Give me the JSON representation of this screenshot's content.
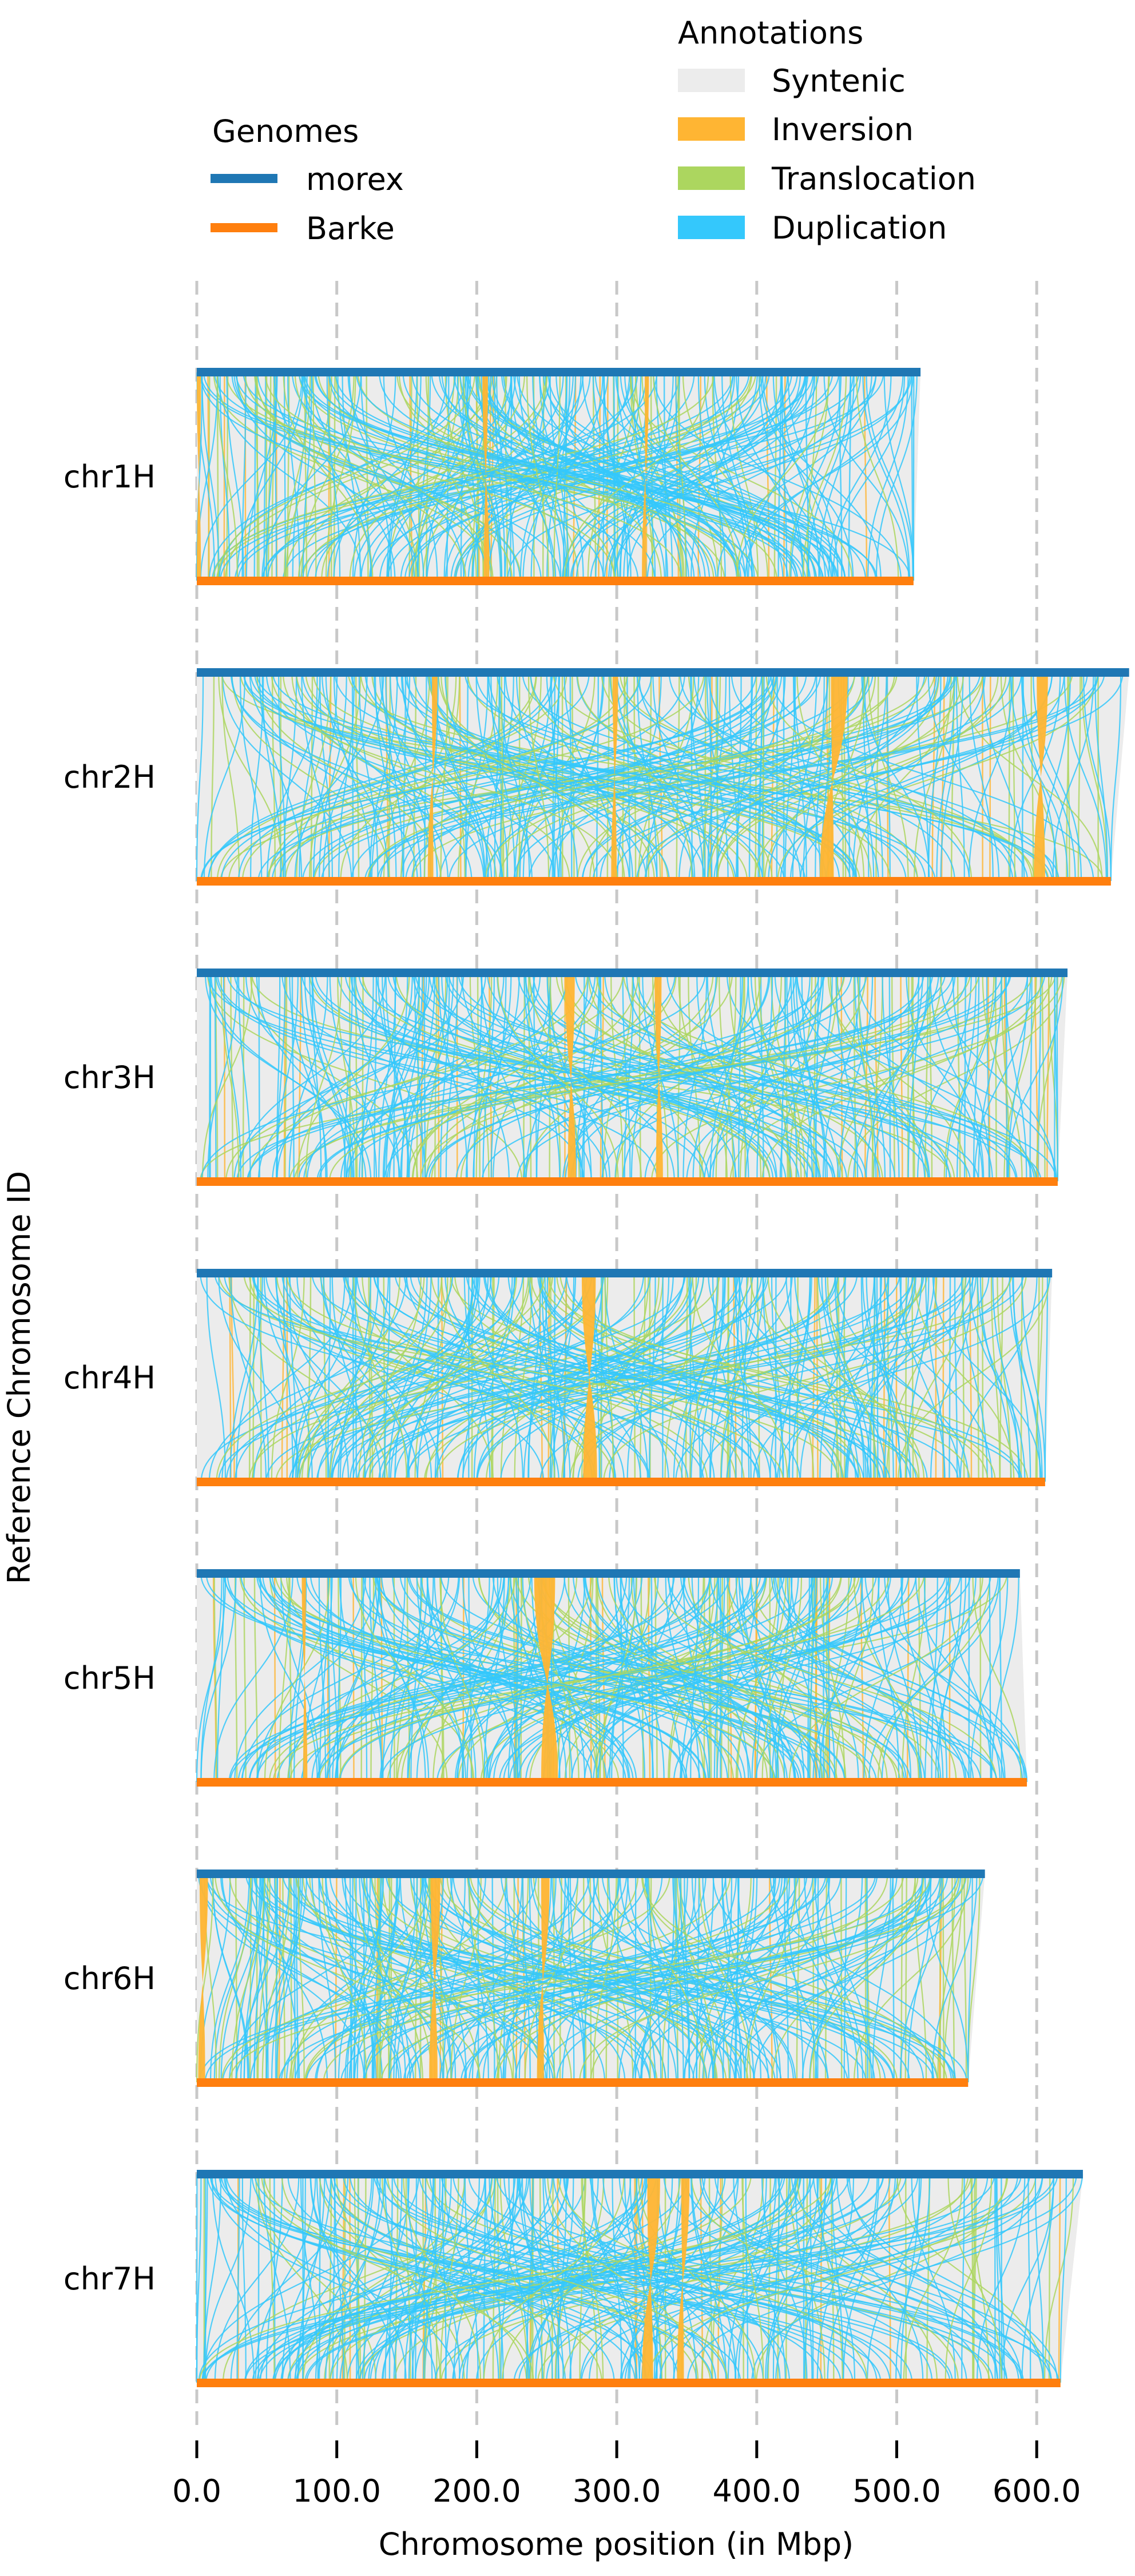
{
  "chart_data": {
    "type": "synteny",
    "xlabel": "Chromosome position (in Mbp)",
    "ylabel": "Reference Chromosome ID",
    "xlim": [
      0,
      666
    ],
    "xticks": [
      0,
      100,
      200,
      300,
      400,
      500,
      600
    ],
    "xtick_labels": [
      "0.0",
      "100.0",
      "200.0",
      "300.0",
      "400.0",
      "500.0",
      "600.0"
    ],
    "grid": "vertical dashed",
    "legend_genomes": {
      "title": "Genomes",
      "placement": "top-left",
      "items": [
        {
          "label": "morex",
          "color": "#1f77b4"
        },
        {
          "label": "Barke",
          "color": "#ff7f0e"
        }
      ]
    },
    "legend_annotations": {
      "title": "Annotations",
      "placement": "top-right",
      "items": [
        {
          "label": "Syntenic",
          "color": "#ececec"
        },
        {
          "label": "Inversion",
          "color": "#ffb533"
        },
        {
          "label": "Translocation",
          "color": "#acd65f"
        },
        {
          "label": "Duplication",
          "color": "#34c8fc"
        }
      ]
    },
    "chromosomes": [
      {
        "id": "chr1H",
        "morex_len": 517,
        "barke_len": 512,
        "inversions": [
          [
            0,
            3,
            0,
            3
          ],
          [
            204,
            208,
            205,
            209
          ],
          [
            320,
            323,
            318,
            321
          ]
        ]
      },
      {
        "id": "chr2H",
        "morex_len": 666,
        "barke_len": 653,
        "inversions": [
          [
            168,
            172,
            165,
            169
          ],
          [
            297,
            301,
            296,
            300
          ],
          [
            453,
            465,
            445,
            455
          ],
          [
            600,
            608,
            598,
            606
          ]
        ]
      },
      {
        "id": "chr3H",
        "morex_len": 622,
        "barke_len": 615,
        "inversions": [
          [
            263,
            270,
            265,
            271
          ],
          [
            327,
            332,
            328,
            333
          ]
        ]
      },
      {
        "id": "chr4H",
        "morex_len": 611,
        "barke_len": 606,
        "inversions": [
          [
            275,
            285,
            276,
            286
          ]
        ]
      },
      {
        "id": "chr5H",
        "morex_len": 588,
        "barke_len": 593,
        "inversions": [
          [
            241,
            256,
            246,
            258
          ],
          [
            75,
            78,
            76,
            79
          ]
        ]
      },
      {
        "id": "chr6H",
        "morex_len": 563,
        "barke_len": 551,
        "inversions": [
          [
            2,
            8,
            1,
            6
          ],
          [
            167,
            174,
            166,
            172
          ],
          [
            246,
            252,
            243,
            248
          ]
        ]
      },
      {
        "id": "chr7H",
        "morex_len": 633,
        "barke_len": 617,
        "inversions": [
          [
            322,
            331,
            318,
            326
          ],
          [
            346,
            352,
            343,
            348
          ]
        ]
      }
    ]
  }
}
